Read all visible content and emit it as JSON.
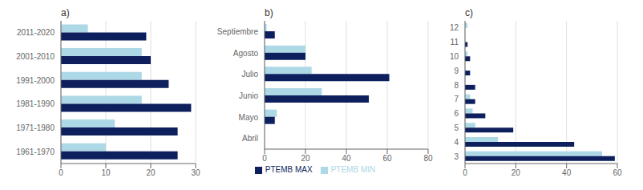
{
  "chart_data": [
    {
      "type": "bar",
      "title": "a)",
      "orientation": "horizontal",
      "grid": true,
      "categories": [
        "2011-2020",
        "2001-2010",
        "1991-2000",
        "1981-1990",
        "1971-1980",
        "1961-1970"
      ],
      "series": [
        {
          "name": "PTEMB MIN",
          "color": "#add8e6",
          "values": [
            6,
            18,
            18,
            18,
            12,
            10
          ]
        },
        {
          "name": "PTEMB MAX",
          "color": "#0d1f5c",
          "values": [
            19,
            20,
            24,
            29,
            26,
            26
          ]
        }
      ],
      "xlim": [
        0,
        30
      ],
      "xticks": [
        0,
        10,
        20,
        30
      ]
    },
    {
      "type": "bar",
      "title": "b)",
      "orientation": "horizontal",
      "grid": true,
      "legend": "bottom",
      "categories": [
        "Septiembre",
        "Agosto",
        "Julio",
        "Junio",
        "Mayo",
        "Abril"
      ],
      "series": [
        {
          "name": "PTEMB MIN",
          "color": "#add8e6",
          "values": [
            1,
            20,
            23,
            28,
            6,
            0
          ]
        },
        {
          "name": "PTEMB MAX",
          "color": "#0d1f5c",
          "values": [
            5,
            20,
            61,
            51,
            5,
            0
          ]
        }
      ],
      "xlim": [
        0,
        80
      ],
      "xticks": [
        0,
        20,
        40,
        60,
        80
      ]
    },
    {
      "type": "bar",
      "title": "c)",
      "orientation": "horizontal",
      "grid": true,
      "categories": [
        "12",
        "11",
        "10",
        "9",
        "8",
        "7",
        "6",
        "5",
        "4",
        "3"
      ],
      "series": [
        {
          "name": "PTEMB MIN",
          "color": "#add8e6",
          "values": [
            1,
            0,
            1,
            0,
            0,
            2,
            3,
            4,
            13,
            54
          ]
        },
        {
          "name": "PTEMB MAX",
          "color": "#0d1f5c",
          "values": [
            0,
            1,
            2,
            2,
            4,
            4,
            8,
            19,
            43,
            59
          ]
        }
      ],
      "xlim": [
        0,
        60
      ],
      "xticks": [
        0,
        20,
        40,
        60
      ]
    }
  ]
}
